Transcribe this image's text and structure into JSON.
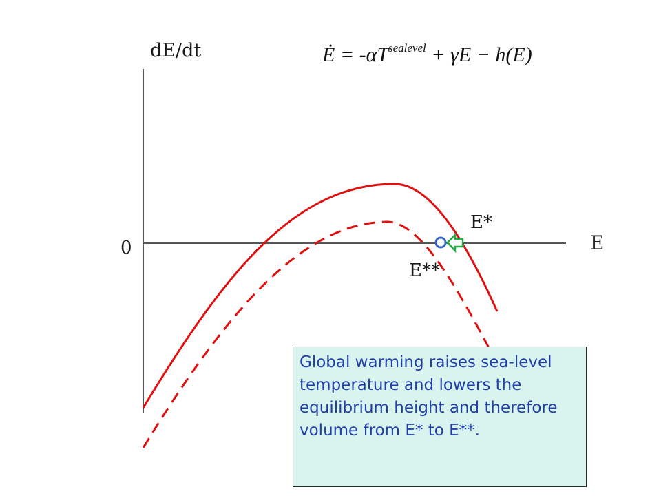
{
  "labels": {
    "y_axis": "dE/dt",
    "x_axis": "E",
    "zero": "0",
    "e_star": "E*",
    "e_star_star": "E**"
  },
  "equation": {
    "lhs": "Ė",
    "equals": " = ",
    "term1": "-αT",
    "term1_sup": "sealevel",
    "term2": " + γE − h(E)"
  },
  "caption": "Global warming raises sea-level temperature and lowers the equilibrium height and therefore volume from E* to E**.",
  "colors": {
    "curve": "#e01010",
    "axis": "#555555",
    "arrow": "#22aa44",
    "marker": "#3366cc",
    "caption_bg": "#d9f4ef",
    "caption_text": "#1f3ea8"
  },
  "icons": {
    "shift_arrow": "left-arrow-icon",
    "equilibrium_marker": "circle-marker-icon"
  }
}
